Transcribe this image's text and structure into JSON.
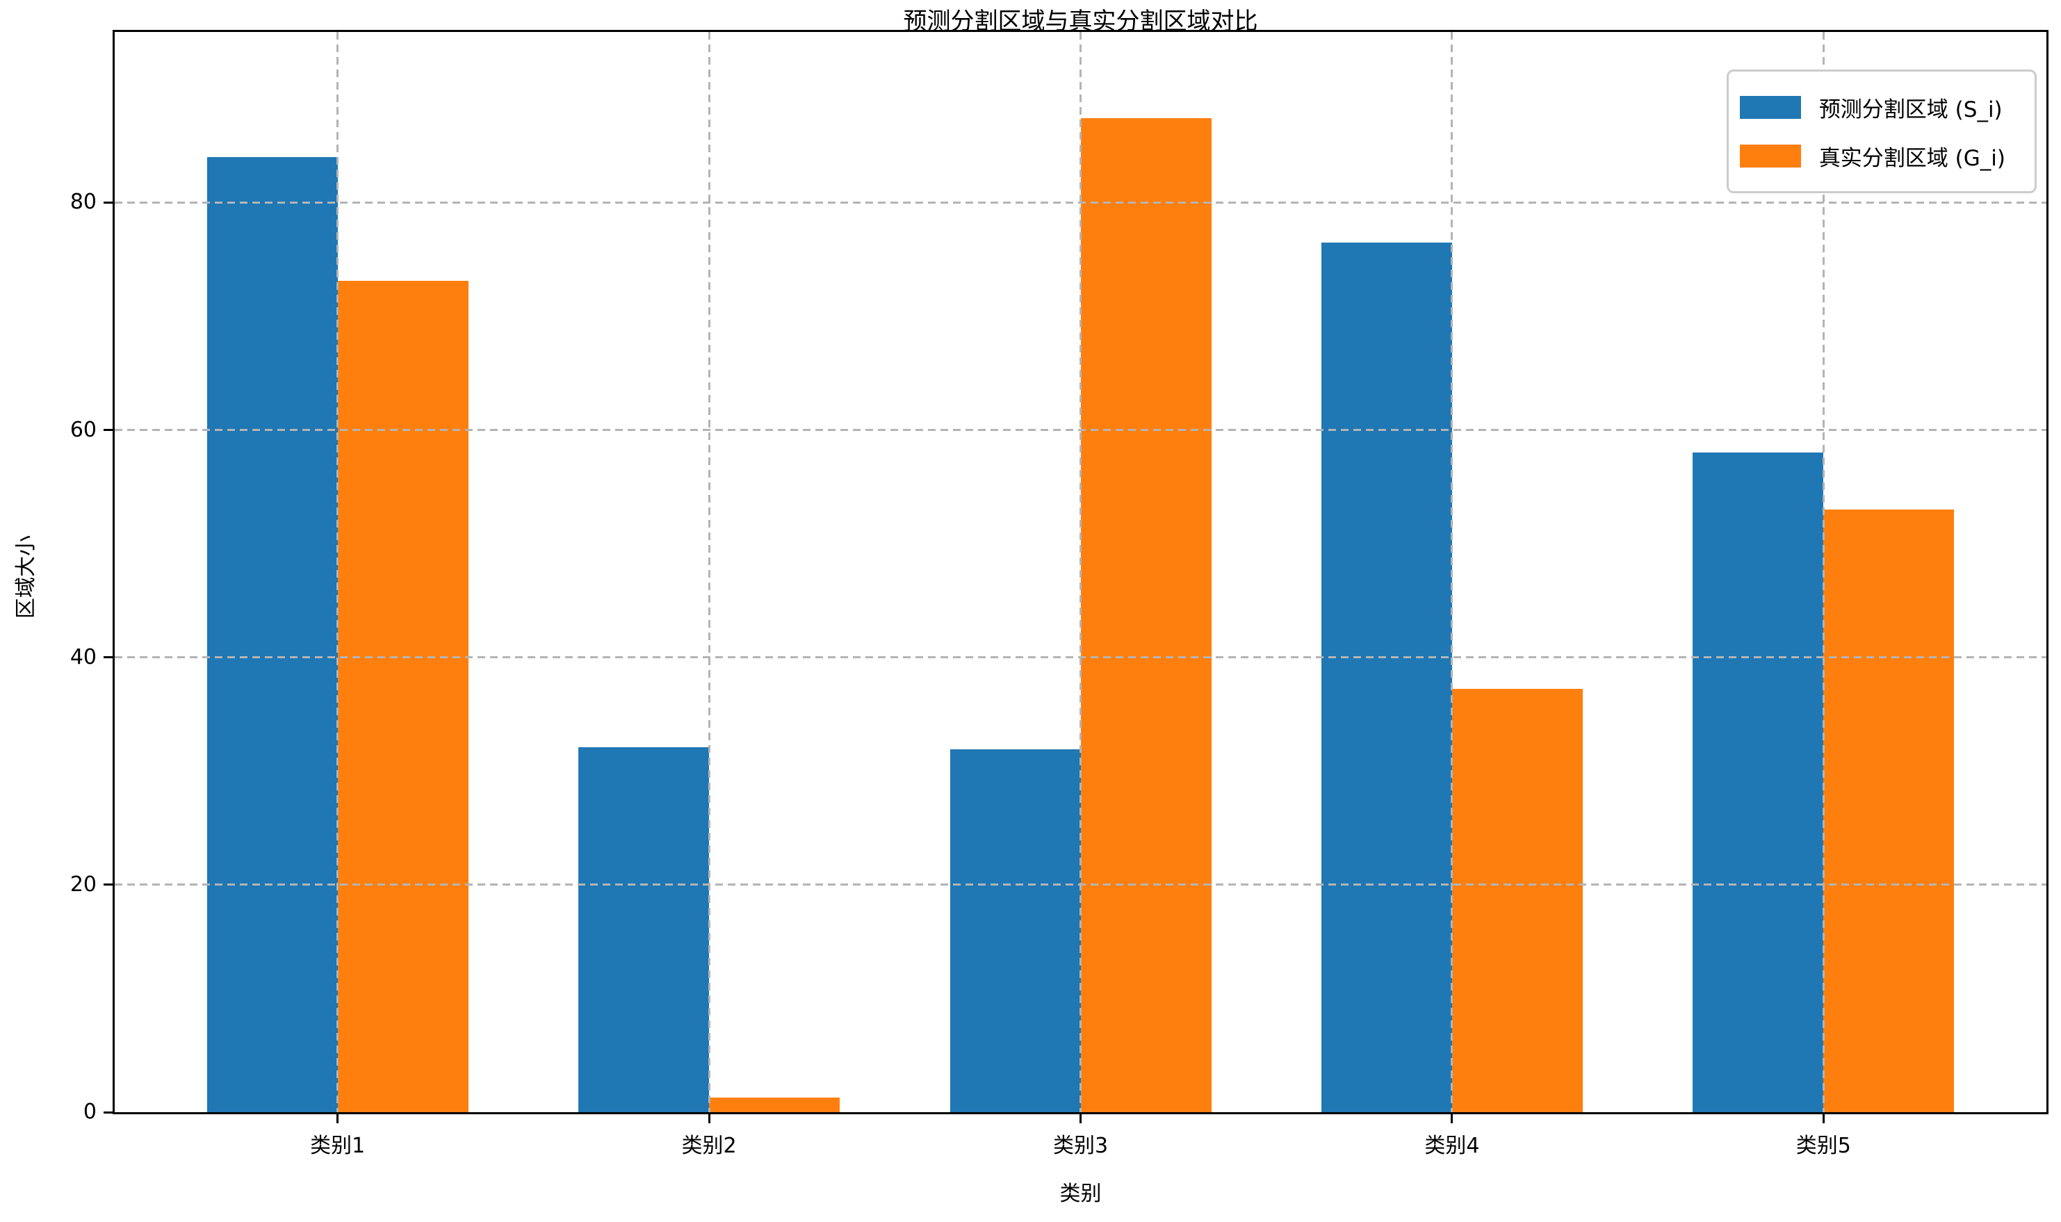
{
  "chart_data": {
    "type": "bar",
    "title": "预测分割区域与真实分割区域对比",
    "xlabel": "类别",
    "ylabel": "区域大小",
    "categories": [
      "类别1",
      "类别2",
      "类别3",
      "类别4",
      "类别5"
    ],
    "series": [
      {
        "name": "预测分割区域 (S_i)",
        "color": "#1f77b4",
        "values": [
          84,
          32.1,
          31.9,
          76.5,
          58
        ]
      },
      {
        "name": "真实分割区域 (G_i)",
        "color": "#ff7f0e",
        "values": [
          73.1,
          1.3,
          87.4,
          37.2,
          53
        ]
      }
    ],
    "ylim": [
      0,
      95
    ],
    "yticks": [
      0,
      20,
      40,
      60,
      80
    ],
    "xlim_units": [
      -0.6,
      4.6
    ],
    "bar_width_units": 0.352,
    "grid": true,
    "grid_style": "dashed",
    "grid_color": "#b4b4b4",
    "grid_above_bars": true,
    "legend_position": "upper right",
    "background_color": "#ffffff",
    "spine_color": "#000000"
  }
}
